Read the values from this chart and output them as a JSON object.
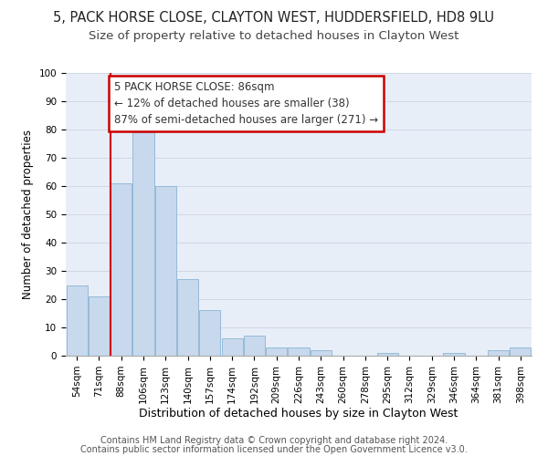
{
  "title1": "5, PACK HORSE CLOSE, CLAYTON WEST, HUDDERSFIELD, HD8 9LU",
  "title2": "Size of property relative to detached houses in Clayton West",
  "xlabel": "Distribution of detached houses by size in Clayton West",
  "ylabel": "Number of detached properties",
  "categories": [
    "54sqm",
    "71sqm",
    "88sqm",
    "106sqm",
    "123sqm",
    "140sqm",
    "157sqm",
    "174sqm",
    "192sqm",
    "209sqm",
    "226sqm",
    "243sqm",
    "260sqm",
    "278sqm",
    "295sqm",
    "312sqm",
    "329sqm",
    "346sqm",
    "364sqm",
    "381sqm",
    "398sqm"
  ],
  "values": [
    25,
    21,
    61,
    79,
    60,
    27,
    16,
    6,
    7,
    3,
    3,
    2,
    0,
    0,
    1,
    0,
    0,
    1,
    0,
    2,
    3
  ],
  "bar_color": "#c8d9ed",
  "bar_edge_color": "#8ab4d4",
  "vline_index": 2,
  "vline_color": "#cc0000",
  "annotation_line1": "5 PACK HORSE CLOSE: 86sqm",
  "annotation_line2": "← 12% of detached houses are smaller (38)",
  "annotation_line3": "87% of semi-detached houses are larger (271) →",
  "annotation_box_color": "#cc0000",
  "annotation_text_color": "#333333",
  "ylim": [
    0,
    100
  ],
  "yticks": [
    0,
    10,
    20,
    30,
    40,
    50,
    60,
    70,
    80,
    90,
    100
  ],
  "grid_color": "#d0d8e4",
  "bg_color": "#e8eef8",
  "footnote1": "Contains HM Land Registry data © Crown copyright and database right 2024.",
  "footnote2": "Contains public sector information licensed under the Open Government Licence v3.0.",
  "title1_fontsize": 10.5,
  "title2_fontsize": 9.5,
  "xlabel_fontsize": 9,
  "ylabel_fontsize": 8.5,
  "tick_fontsize": 7.5,
  "annotation_fontsize": 8.5,
  "footnote_fontsize": 7
}
